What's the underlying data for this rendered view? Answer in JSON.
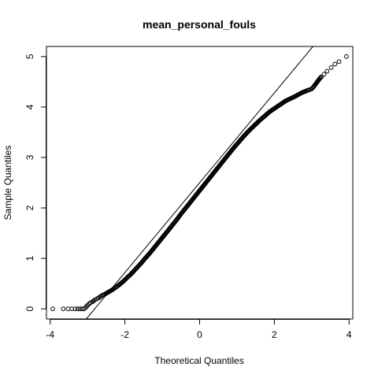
{
  "chart_data": {
    "type": "scatter",
    "title": "mean_personal_fouls",
    "xlabel": "Theoretical Quantiles",
    "ylabel": "Sample Quantiles",
    "xlim": [
      -4.1,
      4.1
    ],
    "ylim": [
      -0.2,
      5.2
    ],
    "xticks": [
      "-4",
      "-2",
      "0",
      "2",
      "4"
    ],
    "yticks": [
      "0",
      "1",
      "2",
      "3",
      "4",
      "5"
    ],
    "grid": false,
    "legend": "none",
    "reference_line": {
      "slope": 0.89,
      "intercept": 2.5
    },
    "points": [
      [
        -3.93,
        0.0
      ],
      [
        -3.65,
        0.0
      ],
      [
        -3.52,
        0.0
      ],
      [
        -3.42,
        0.0
      ],
      [
        -3.33,
        0.0
      ],
      [
        -3.26,
        0.0
      ],
      [
        -3.2,
        0.0
      ],
      [
        -3.14,
        0.0
      ],
      [
        -3.09,
        0.0
      ],
      [
        -3.05,
        0.03
      ],
      [
        -3.0,
        0.07
      ],
      [
        -2.96,
        0.1
      ],
      [
        -2.92,
        0.12
      ],
      [
        -2.87,
        0.14
      ],
      [
        -2.82,
        0.17
      ],
      [
        -2.77,
        0.19
      ],
      [
        -2.72,
        0.21
      ],
      [
        -2.66,
        0.24
      ],
      [
        -2.6,
        0.27
      ],
      [
        -2.54,
        0.29
      ],
      [
        -2.47,
        0.32
      ],
      [
        -2.4,
        0.35
      ],
      [
        -2.33,
        0.38
      ],
      [
        -2.26,
        0.42
      ],
      [
        -2.18,
        0.46
      ],
      [
        -2.1,
        0.51
      ],
      [
        -2.02,
        0.56
      ],
      [
        -1.94,
        0.62
      ],
      [
        -1.85,
        0.68
      ],
      [
        -1.76,
        0.75
      ],
      [
        -1.66,
        0.83
      ],
      [
        -1.56,
        0.91
      ],
      [
        -1.46,
        1.0
      ],
      [
        -1.35,
        1.09
      ],
      [
        -1.24,
        1.19
      ],
      [
        -1.12,
        1.3
      ],
      [
        -1.0,
        1.41
      ],
      [
        -0.88,
        1.52
      ],
      [
        -0.75,
        1.64
      ],
      [
        -0.62,
        1.76
      ],
      [
        -0.49,
        1.89
      ],
      [
        -0.36,
        2.01
      ],
      [
        -0.22,
        2.14
      ],
      [
        -0.08,
        2.27
      ],
      [
        0.06,
        2.4
      ],
      [
        0.2,
        2.53
      ],
      [
        0.34,
        2.66
      ],
      [
        0.48,
        2.79
      ],
      [
        0.62,
        2.92
      ],
      [
        0.76,
        3.05
      ],
      [
        0.9,
        3.18
      ],
      [
        1.04,
        3.3
      ],
      [
        1.18,
        3.42
      ],
      [
        1.32,
        3.53
      ],
      [
        1.46,
        3.63
      ],
      [
        1.6,
        3.73
      ],
      [
        1.74,
        3.82
      ],
      [
        1.88,
        3.91
      ],
      [
        2.02,
        3.98
      ],
      [
        2.16,
        4.05
      ],
      [
        2.3,
        4.12
      ],
      [
        2.44,
        4.17
      ],
      [
        2.58,
        4.22
      ],
      [
        2.7,
        4.27
      ],
      [
        2.82,
        4.31
      ],
      [
        2.93,
        4.34
      ],
      [
        3.0,
        4.36
      ],
      [
        3.05,
        4.4
      ],
      [
        3.1,
        4.45
      ],
      [
        3.15,
        4.5
      ],
      [
        3.2,
        4.55
      ],
      [
        3.26,
        4.6
      ],
      [
        3.33,
        4.65
      ],
      [
        3.41,
        4.71
      ],
      [
        3.52,
        4.78
      ],
      [
        3.62,
        4.85
      ],
      [
        3.73,
        4.9
      ],
      [
        3.93,
        5.0
      ]
    ]
  }
}
